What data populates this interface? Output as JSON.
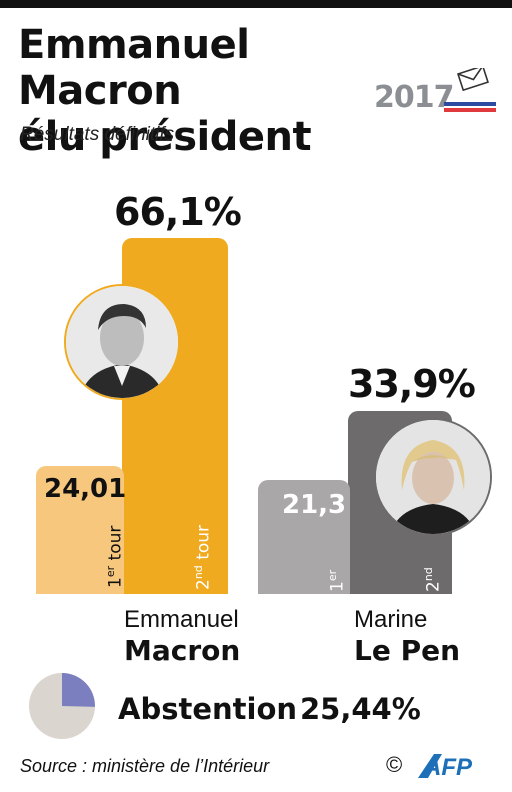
{
  "header": {
    "title_line1": "Emmanuel Macron",
    "title_line2": "élu président",
    "subtitle": "Résultats définitifs",
    "badge_year": "2017"
  },
  "chart_data": {
    "type": "bar",
    "title": "Emmanuel Macron élu président",
    "subtitle": "Résultats définitifs",
    "unit": "%",
    "categories": [
      "Emmanuel Macron",
      "Marine Le Pen"
    ],
    "series": [
      {
        "name": "1er tour",
        "values": [
          24.01,
          21.3
        ],
        "labels": [
          "24,01",
          "21,3"
        ]
      },
      {
        "name": "2nd tour",
        "values": [
          66.1,
          33.9
        ],
        "labels": [
          "66,1%",
          "33,9%"
        ]
      }
    ],
    "colors": {
      "macron_round2": "#f0aa1f",
      "macron_round1": "#f6c77c",
      "lepen_round2": "#6d6b6c",
      "lepen_round1": "#a9a7a8"
    }
  },
  "candidates": [
    {
      "first_name": "Emmanuel",
      "last_name": "Macron",
      "round1_label": "24,01",
      "round2_label": "66,1%",
      "tour1_text": "1",
      "tour1_sup": "er",
      "tour1_word": " tour",
      "tour2_text": "2",
      "tour2_sup": "nd",
      "tour2_word": " tour"
    },
    {
      "first_name": "Marine",
      "last_name": "Le Pen",
      "round1_label": "21,3",
      "round2_label": "33,9%",
      "tour1_text": "1",
      "tour1_sup": "er",
      "tour2_text": "2",
      "tour2_sup": "nd"
    }
  ],
  "abstention": {
    "label": "Abstention",
    "value_label": "25,44%",
    "value": 25.44,
    "pie_color": "#7c7fbf",
    "pie_bg": "#dad5cf"
  },
  "footer": {
    "source": "Source : ministère de l’Intérieur",
    "copyright": "©",
    "agency": "AFP"
  }
}
